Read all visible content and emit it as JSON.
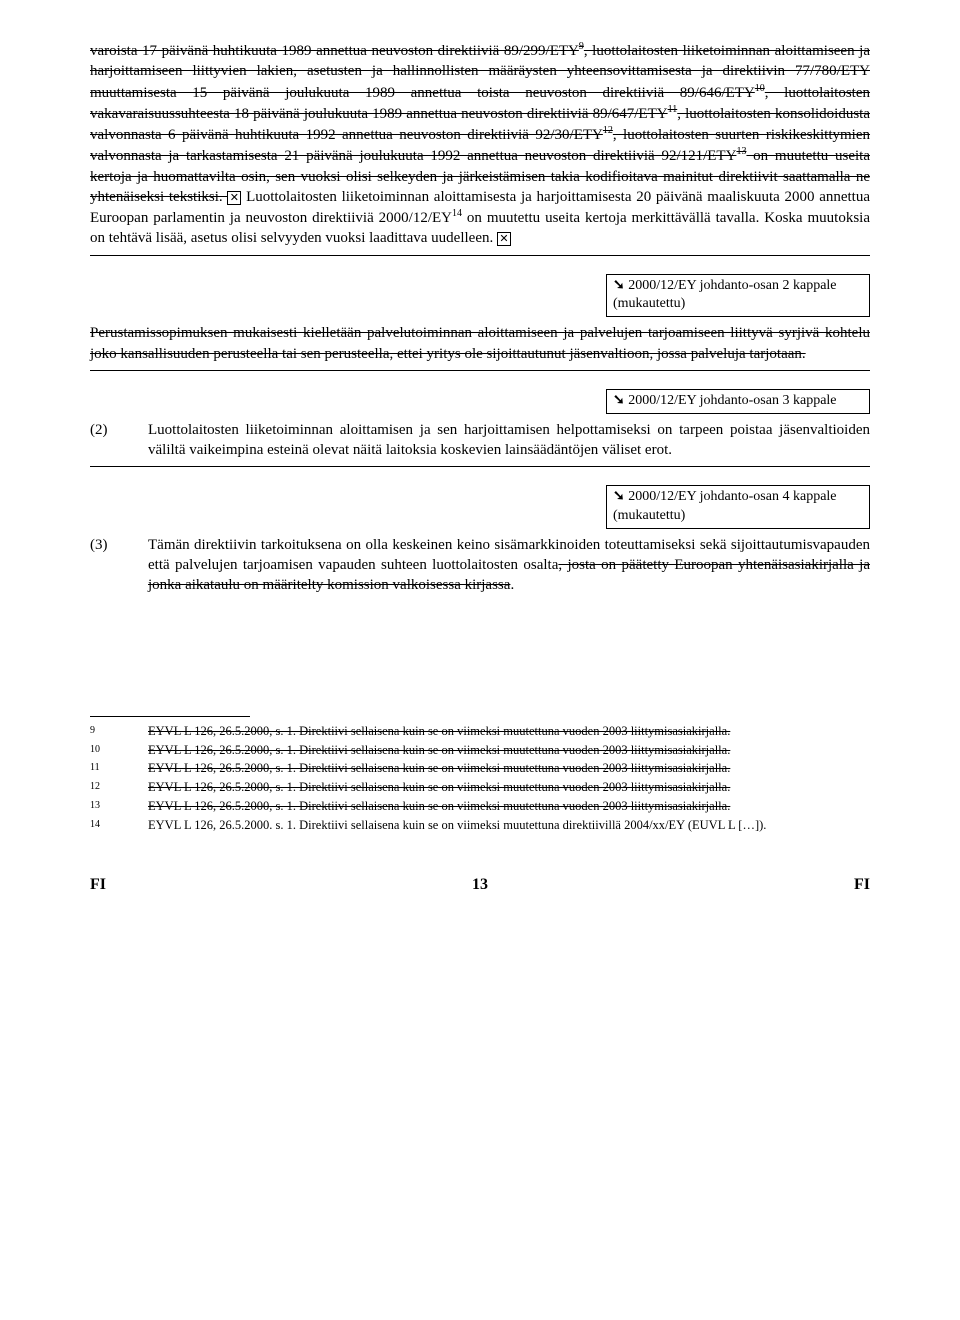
{
  "p1_struck": "varoista 17 päivänä huhtikuuta 1989 annettua neuvoston direktiiviä 89/299/ETY",
  "p1_sup1": "9",
  "p1_struck_b": ", luottolaitosten liiketoiminnan aloittamiseen ja harjoittamiseen liittyvien lakien, asetusten ja hallinnollisten määräysten yhteensovittamisesta ja direktiivin 77/780/ETY muuttamisesta 15 päivänä joulukuuta 1989 annettua toista neuvoston direktiiviä 89/646/ETY",
  "p1_sup2": "10",
  "p1_struck_c": ", luottolaitosten vakavaraisuussuhteesta 18 päivänä joulukuuta 1989 annettua neuvoston direktiiviä 89/647/ETY",
  "p1_sup3": "11",
  "p1_struck_d": ", luottolaitosten konsolidoidusta valvonnasta 6 päivänä huhtikuuta 1992 annettua neuvoston direktiiviä 92/30/ETY",
  "p1_sup4": "12",
  "p1_struck_e": ", luottolaitosten suurten riskikeskittymien valvonnasta ja tarkastamisesta 21 päivänä joulukuuta 1992 annettua neuvoston direktiiviä 92/121/ETY",
  "p1_sup5": "13",
  "p1_struck_f": " on muutettu useita kertoja ja huomattavilta osin, sen vuoksi olisi selkeyden ja järkeistämisen takia kodifioitava mainitut direktiivit saattamalla ne yhtenäiseksi tekstiksi. ",
  "delmark": "✕",
  "p1_new_a": "Luottolaitosten liiketoiminnan aloittamisesta ja harjoittamisesta 20 päivänä maaliskuuta 2000 annettua Euroopan parlamentin ja neuvoston direktiiviä 2000/12/EY",
  "p1_sup6": "14",
  "p1_new_b": " on muutettu useita kertoja merkittävällä tavalla. Koska muutoksia on tehtävä lisää, asetus olisi selvyyden vuoksi laadittava uudelleen. ",
  "anno1_a": " 2000/12/EY johdanto-osan 2 kappale (mukautettu)",
  "p2_struck": "Perustamissopimuksen mukaisesti kielletään palvelutoiminnan aloittamiseen ja palvelujen tarjoamiseen liittyvä syrjivä kohtelu joko kansallisuuden perusteella tai sen perusteella, ettei yritys ole sijoittautunut jäsenvaltioon, jossa palveluja tarjotaan.",
  "anno2_a": " 2000/12/EY johdanto-osan 3 kappale",
  "item2_num": "(2)",
  "item2_body": "Luottolaitosten liiketoiminnan aloittamisen ja sen harjoittamisen helpottamiseksi on tarpeen poistaa jäsenvaltioiden väliltä vaikeimpina esteinä olevat näitä laitoksia koskevien lainsäädäntöjen väliset erot.",
  "anno3_a": " 2000/12/EY johdanto-osan 4 kappale (mukautettu)",
  "item3_num": "(3)",
  "item3_body_a": "Tämän direktiivin tarkoituksena on olla keskeinen keino sisämarkkinoiden toteuttamiseksi sekä sijoittautumisvapauden että palvelujen tarjoamisen vapauden suhteen luottolaitosten osalta",
  "item3_struck": ", josta on päätetty Euroopan yhtenäisasiakirjalla ja jonka aikataulu on määritelty komission valkoisessa kirjassa",
  "item3_tail": ".",
  "fn9_num": "9",
  "fn9": "EYVL L 126, 26.5.2000, s. 1. Direktiivi sellaisena kuin se on viimeksi muutettuna vuoden 2003 liittymisasiakirjalla.",
  "fn10_num": "10",
  "fn10": "EYVL L 126, 26.5.2000, s. 1. Direktiivi sellaisena kuin se on viimeksi muutettuna vuoden 2003 liittymisasiakirjalla.",
  "fn11_num": "11",
  "fn11": "EYVL L 126, 26.5.2000, s. 1. Direktiivi sellaisena kuin se on viimeksi muutettuna vuoden 2003 liittymisasiakirjalla.",
  "fn12_num": "12",
  "fn12": "EYVL L 126, 26.5.2000, s. 1. Direktiivi sellaisena kuin se on viimeksi muutettuna vuoden 2003 liittymisasiakirjalla.",
  "fn13_num": "13",
  "fn13": "EYVL L 126, 26.5.2000, s. 1. Direktiivi sellaisena kuin se on viimeksi muutettuna vuoden 2003 liittymisasiakirjalla.",
  "fn14_num": "14",
  "fn14": "EYVL L 126, 26.5.2000. s. 1. Direktiivi sellaisena kuin se on viimeksi muutettuna direktiivillä 2004/xx/EY (EUVL L […]).",
  "footer_left": "FI",
  "footer_center": "13",
  "footer_right": "FI",
  "arrow": "➘"
}
